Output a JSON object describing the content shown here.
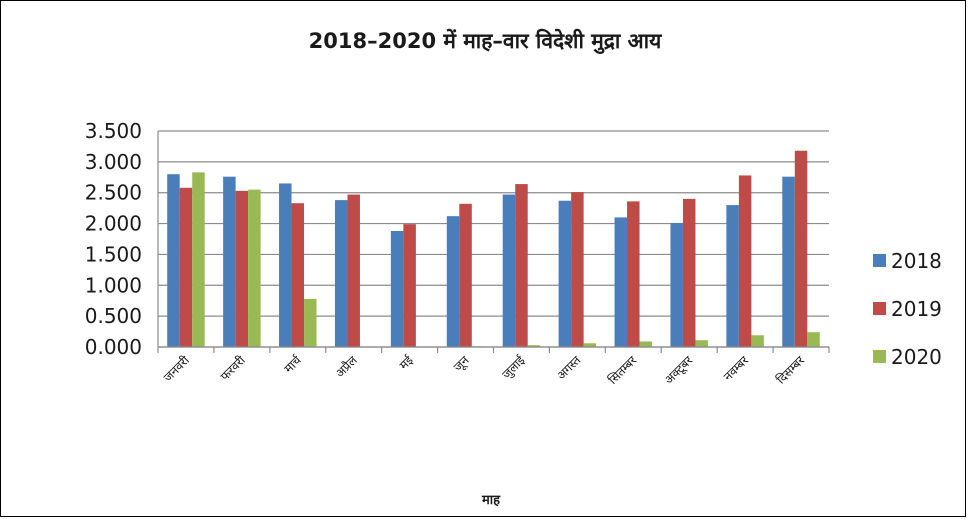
{
  "chart_data": {
    "type": "bar",
    "title": "2018–2020 में माह–वार विदेशी मुद्रा आय",
    "xlabel": "माह",
    "ylabel": "",
    "categories": [
      "जनवरी",
      "फरवरी",
      "मार्च",
      "अप्रैल",
      "मई",
      "जून",
      "जुलाई",
      "अगस्त",
      "सितम्बर",
      "अक्टूबर",
      "नवम्बर",
      "दिसम्बर"
    ],
    "ylim": [
      0,
      3.5
    ],
    "yticks": [
      "0.000",
      "0.500",
      "1.000",
      "1.500",
      "2.000",
      "2.500",
      "3.000",
      "3.500"
    ],
    "series": [
      {
        "name": "2018",
        "color": "#4a7ebb",
        "values": [
          2.8,
          2.76,
          2.65,
          2.38,
          1.88,
          2.12,
          2.47,
          2.37,
          2.1,
          2.01,
          2.3,
          2.76
        ]
      },
      {
        "name": "2019",
        "color": "#be4b48",
        "values": [
          2.58,
          2.53,
          2.33,
          2.47,
          1.99,
          2.32,
          2.64,
          2.51,
          2.36,
          2.4,
          2.78,
          3.18
        ]
      },
      {
        "name": "2020",
        "color": "#98b954",
        "values": [
          2.83,
          2.55,
          0.78,
          0.0,
          0.0,
          0.01,
          0.03,
          0.06,
          0.09,
          0.11,
          0.19,
          0.24
        ]
      }
    ],
    "grid": true,
    "legend_position": "right"
  }
}
